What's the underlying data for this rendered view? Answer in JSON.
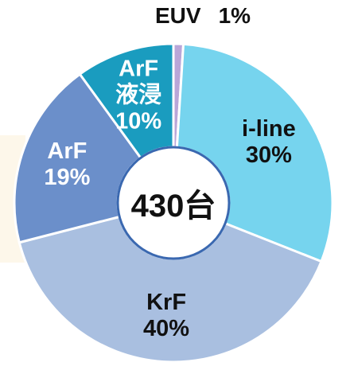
{
  "chart_data": {
    "type": "donut",
    "categories": [
      "EUV",
      "i-line",
      "KrF",
      "ArF",
      "ArF液浸"
    ],
    "values": [
      1,
      30,
      40,
      19,
      10
    ],
    "value_labels": [
      "1%",
      "30%",
      "40%",
      "19%",
      "10%"
    ],
    "colors": [
      "#b9a6d8",
      "#76d4ee",
      "#a9bfe0",
      "#6b8fca",
      "#1a9cbf"
    ],
    "center_label": "430台"
  }
}
